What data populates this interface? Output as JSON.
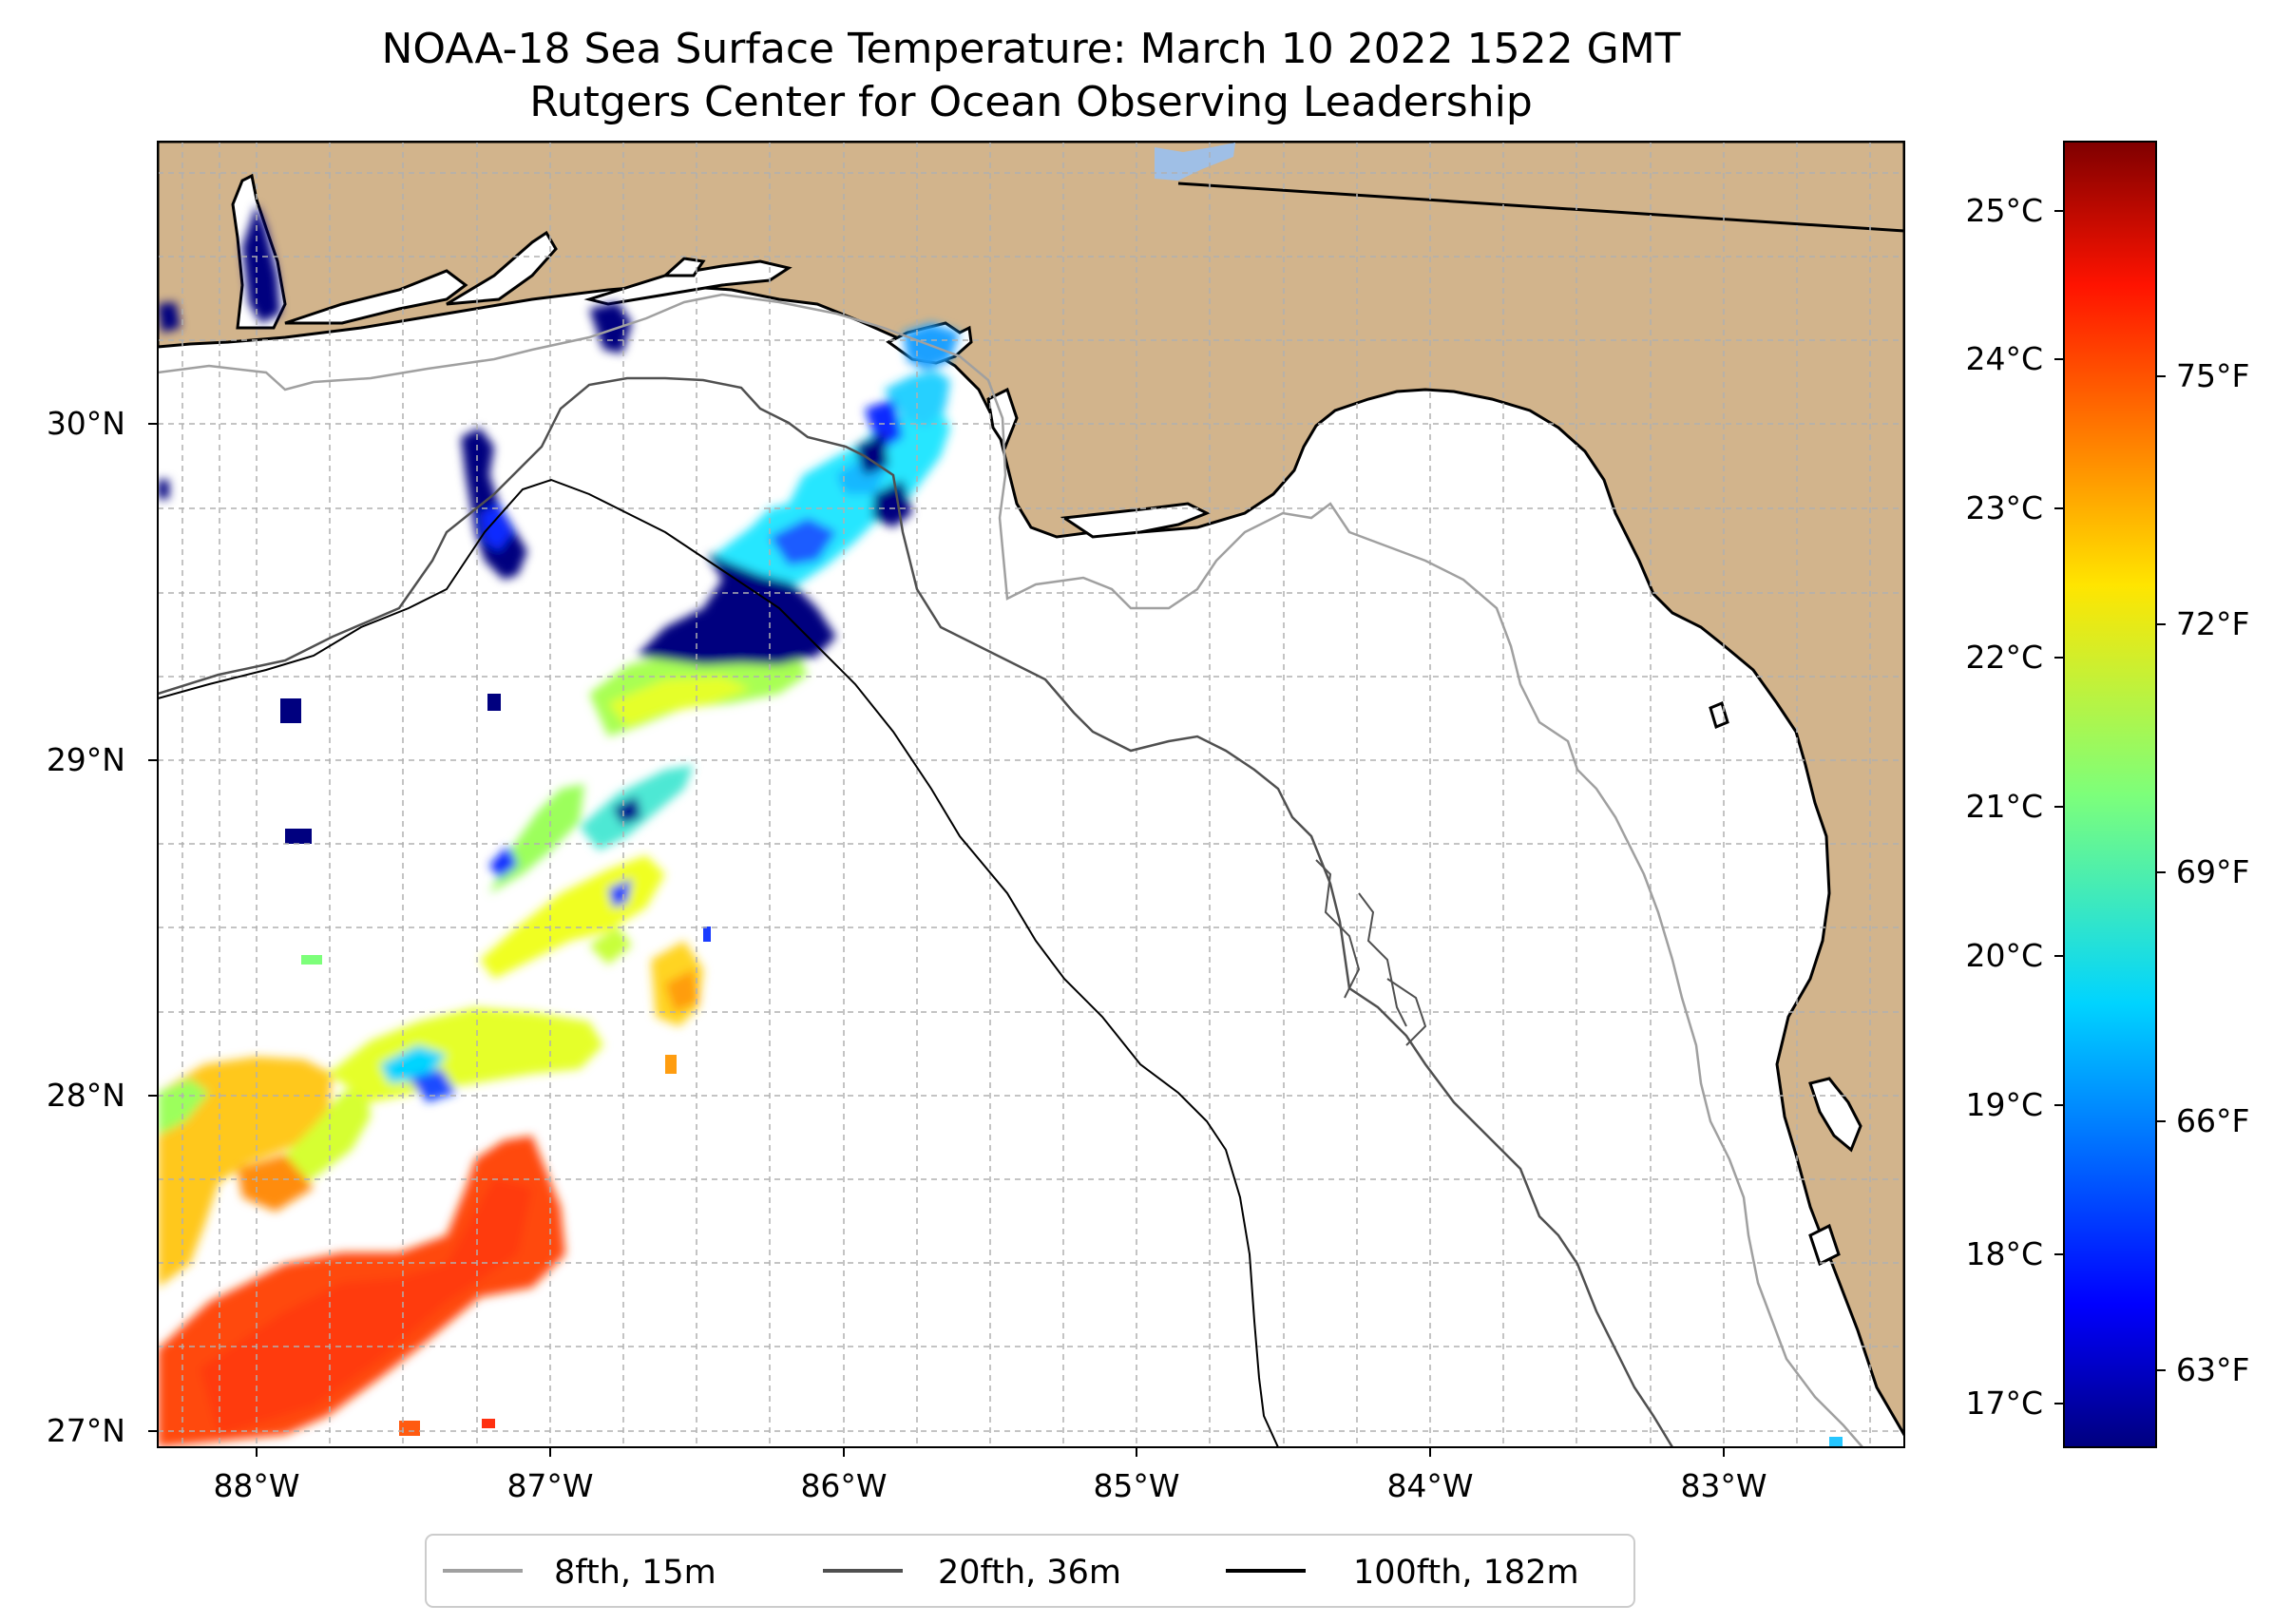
{
  "title": {
    "line1": "NOAA-18 Sea Surface Temperature: March 10 2022 1522 GMT",
    "line2": "Rutgers Center for Ocean Observing Leadership"
  },
  "map": {
    "lon_range": [
      -88.34,
      -82.4
    ],
    "lat_range": [
      26.93,
      30.85
    ],
    "land_color": "#d2b48c",
    "water_color": "#ffffff",
    "inland_water_color": "#9fbfe6",
    "lon_ticks": [
      {
        "value": -88,
        "label": "88°W"
      },
      {
        "value": -87,
        "label": "87°W"
      },
      {
        "value": -86,
        "label": "86°W"
      },
      {
        "value": -85,
        "label": "85°W"
      },
      {
        "value": -84,
        "label": "84°W"
      },
      {
        "value": -83,
        "label": "83°W"
      }
    ],
    "lat_ticks": [
      {
        "value": 27,
        "label": "27°N"
      },
      {
        "value": 28,
        "label": "28°N"
      },
      {
        "value": 29,
        "label": "29°N"
      },
      {
        "value": 30,
        "label": "30°N"
      }
    ],
    "gridlines": true
  },
  "colorbar": {
    "colormap": "jet",
    "range_c": [
      16.7,
      25.45
    ],
    "celsius_ticks": [
      {
        "value": 17,
        "label": "17°C"
      },
      {
        "value": 18,
        "label": "18°C"
      },
      {
        "value": 19,
        "label": "19°C"
      },
      {
        "value": 20,
        "label": "20°C"
      },
      {
        "value": 21,
        "label": "21°C"
      },
      {
        "value": 22,
        "label": "22°C"
      },
      {
        "value": 23,
        "label": "23°C"
      },
      {
        "value": 24,
        "label": "24°C"
      },
      {
        "value": 25,
        "label": "25°C"
      }
    ],
    "fahrenheit_ticks": [
      {
        "value": 63,
        "label": "63°F"
      },
      {
        "value": 66,
        "label": "66°F"
      },
      {
        "value": 69,
        "label": "69°F"
      },
      {
        "value": 72,
        "label": "72°F"
      },
      {
        "value": 75,
        "label": "75°F"
      }
    ]
  },
  "legend": {
    "position": "bottom-center",
    "items": [
      {
        "label": "8fth, 15m",
        "color": "#a0a0a0"
      },
      {
        "label": "20fth, 36m",
        "color": "#505050"
      },
      {
        "label": "100fth, 182m",
        "color": "#000000"
      }
    ]
  },
  "chart_data": {
    "type": "heatmap",
    "variable": "sea surface temperature (°C)",
    "regions": [
      {
        "name": "mobile-bay-cold",
        "lon": -87.97,
        "lat": 30.5,
        "temp_c": 17.0
      },
      {
        "name": "pensacola-cold",
        "lon": -87.15,
        "lat": 29.85,
        "temp_c": 17.1
      },
      {
        "name": "desoto-canyon-cold",
        "lon": -86.45,
        "lat": 29.43,
        "temp_c": 17.0
      },
      {
        "name": "choctawhatchee-cyan",
        "lon": -86.1,
        "lat": 29.65,
        "temp_c": 19.8
      },
      {
        "name": "st-andrew-cyan",
        "lon": -85.75,
        "lat": 30.0,
        "temp_c": 19.5
      },
      {
        "name": "shelf-break-green",
        "lon": -86.6,
        "lat": 29.28,
        "temp_c": 21.4
      },
      {
        "name": "mid-shelf-yellow",
        "lon": -86.9,
        "lat": 28.7,
        "temp_c": 21.9
      },
      {
        "name": "offshore-west-yellow",
        "lon": -87.9,
        "lat": 27.9,
        "temp_c": 22.3
      },
      {
        "name": "loop-current-orange",
        "lon": -87.7,
        "lat": 27.3,
        "temp_c": 24.2
      },
      {
        "name": "small-patch-orange",
        "lon": -86.55,
        "lat": 28.3,
        "temp_c": 23.3
      }
    ]
  }
}
